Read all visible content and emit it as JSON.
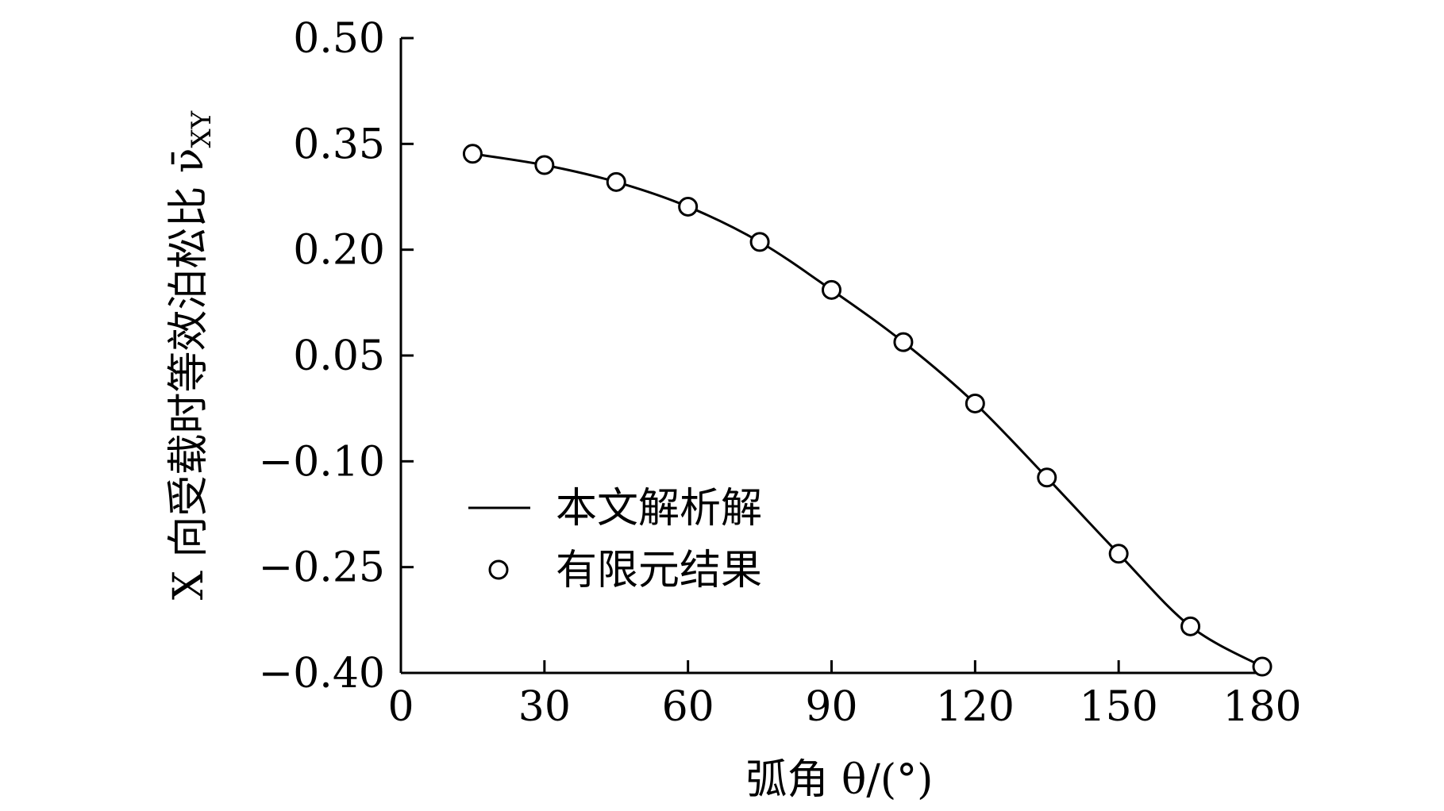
{
  "chart_data": {
    "type": "line",
    "title": "",
    "xlabel": "弧角 θ/(°)",
    "ylabel": "X 向受载时等效泊松比 ν̄",
    "ylabel_subscript": "XY",
    "xlim": [
      0,
      180
    ],
    "ylim": [
      -0.4,
      0.5
    ],
    "xticks": [
      0,
      30,
      60,
      90,
      120,
      150,
      180
    ],
    "xtick_labels": [
      "0",
      "30",
      "60",
      "90",
      "120",
      "150",
      "180"
    ],
    "yticks": [
      0.5,
      0.35,
      0.2,
      0.05,
      -0.1,
      -0.25,
      -0.4
    ],
    "ytick_labels": [
      "0.50",
      "0.35",
      "0.20",
      "0.05",
      "−0.10",
      "−0.25",
      "−0.40"
    ],
    "grid": false,
    "legend_position": "lower-left",
    "series": [
      {
        "name": "本文解析解",
        "style": "line",
        "color": "#000000",
        "x": [
          15,
          30,
          45,
          60,
          75,
          90,
          105,
          120,
          135,
          150,
          165,
          180
        ],
        "y": [
          0.336,
          0.32,
          0.296,
          0.261,
          0.211,
          0.143,
          0.069,
          -0.018,
          -0.123,
          -0.231,
          -0.334,
          -0.391
        ]
      },
      {
        "name": "有限元结果",
        "style": "marker",
        "marker": "open-circle",
        "color": "#000000",
        "x": [
          15,
          30,
          45,
          60,
          75,
          90,
          105,
          120,
          135,
          150,
          165,
          180
        ],
        "y": [
          0.336,
          0.32,
          0.296,
          0.261,
          0.211,
          0.143,
          0.069,
          -0.018,
          -0.123,
          -0.231,
          -0.334,
          -0.391
        ]
      }
    ]
  }
}
